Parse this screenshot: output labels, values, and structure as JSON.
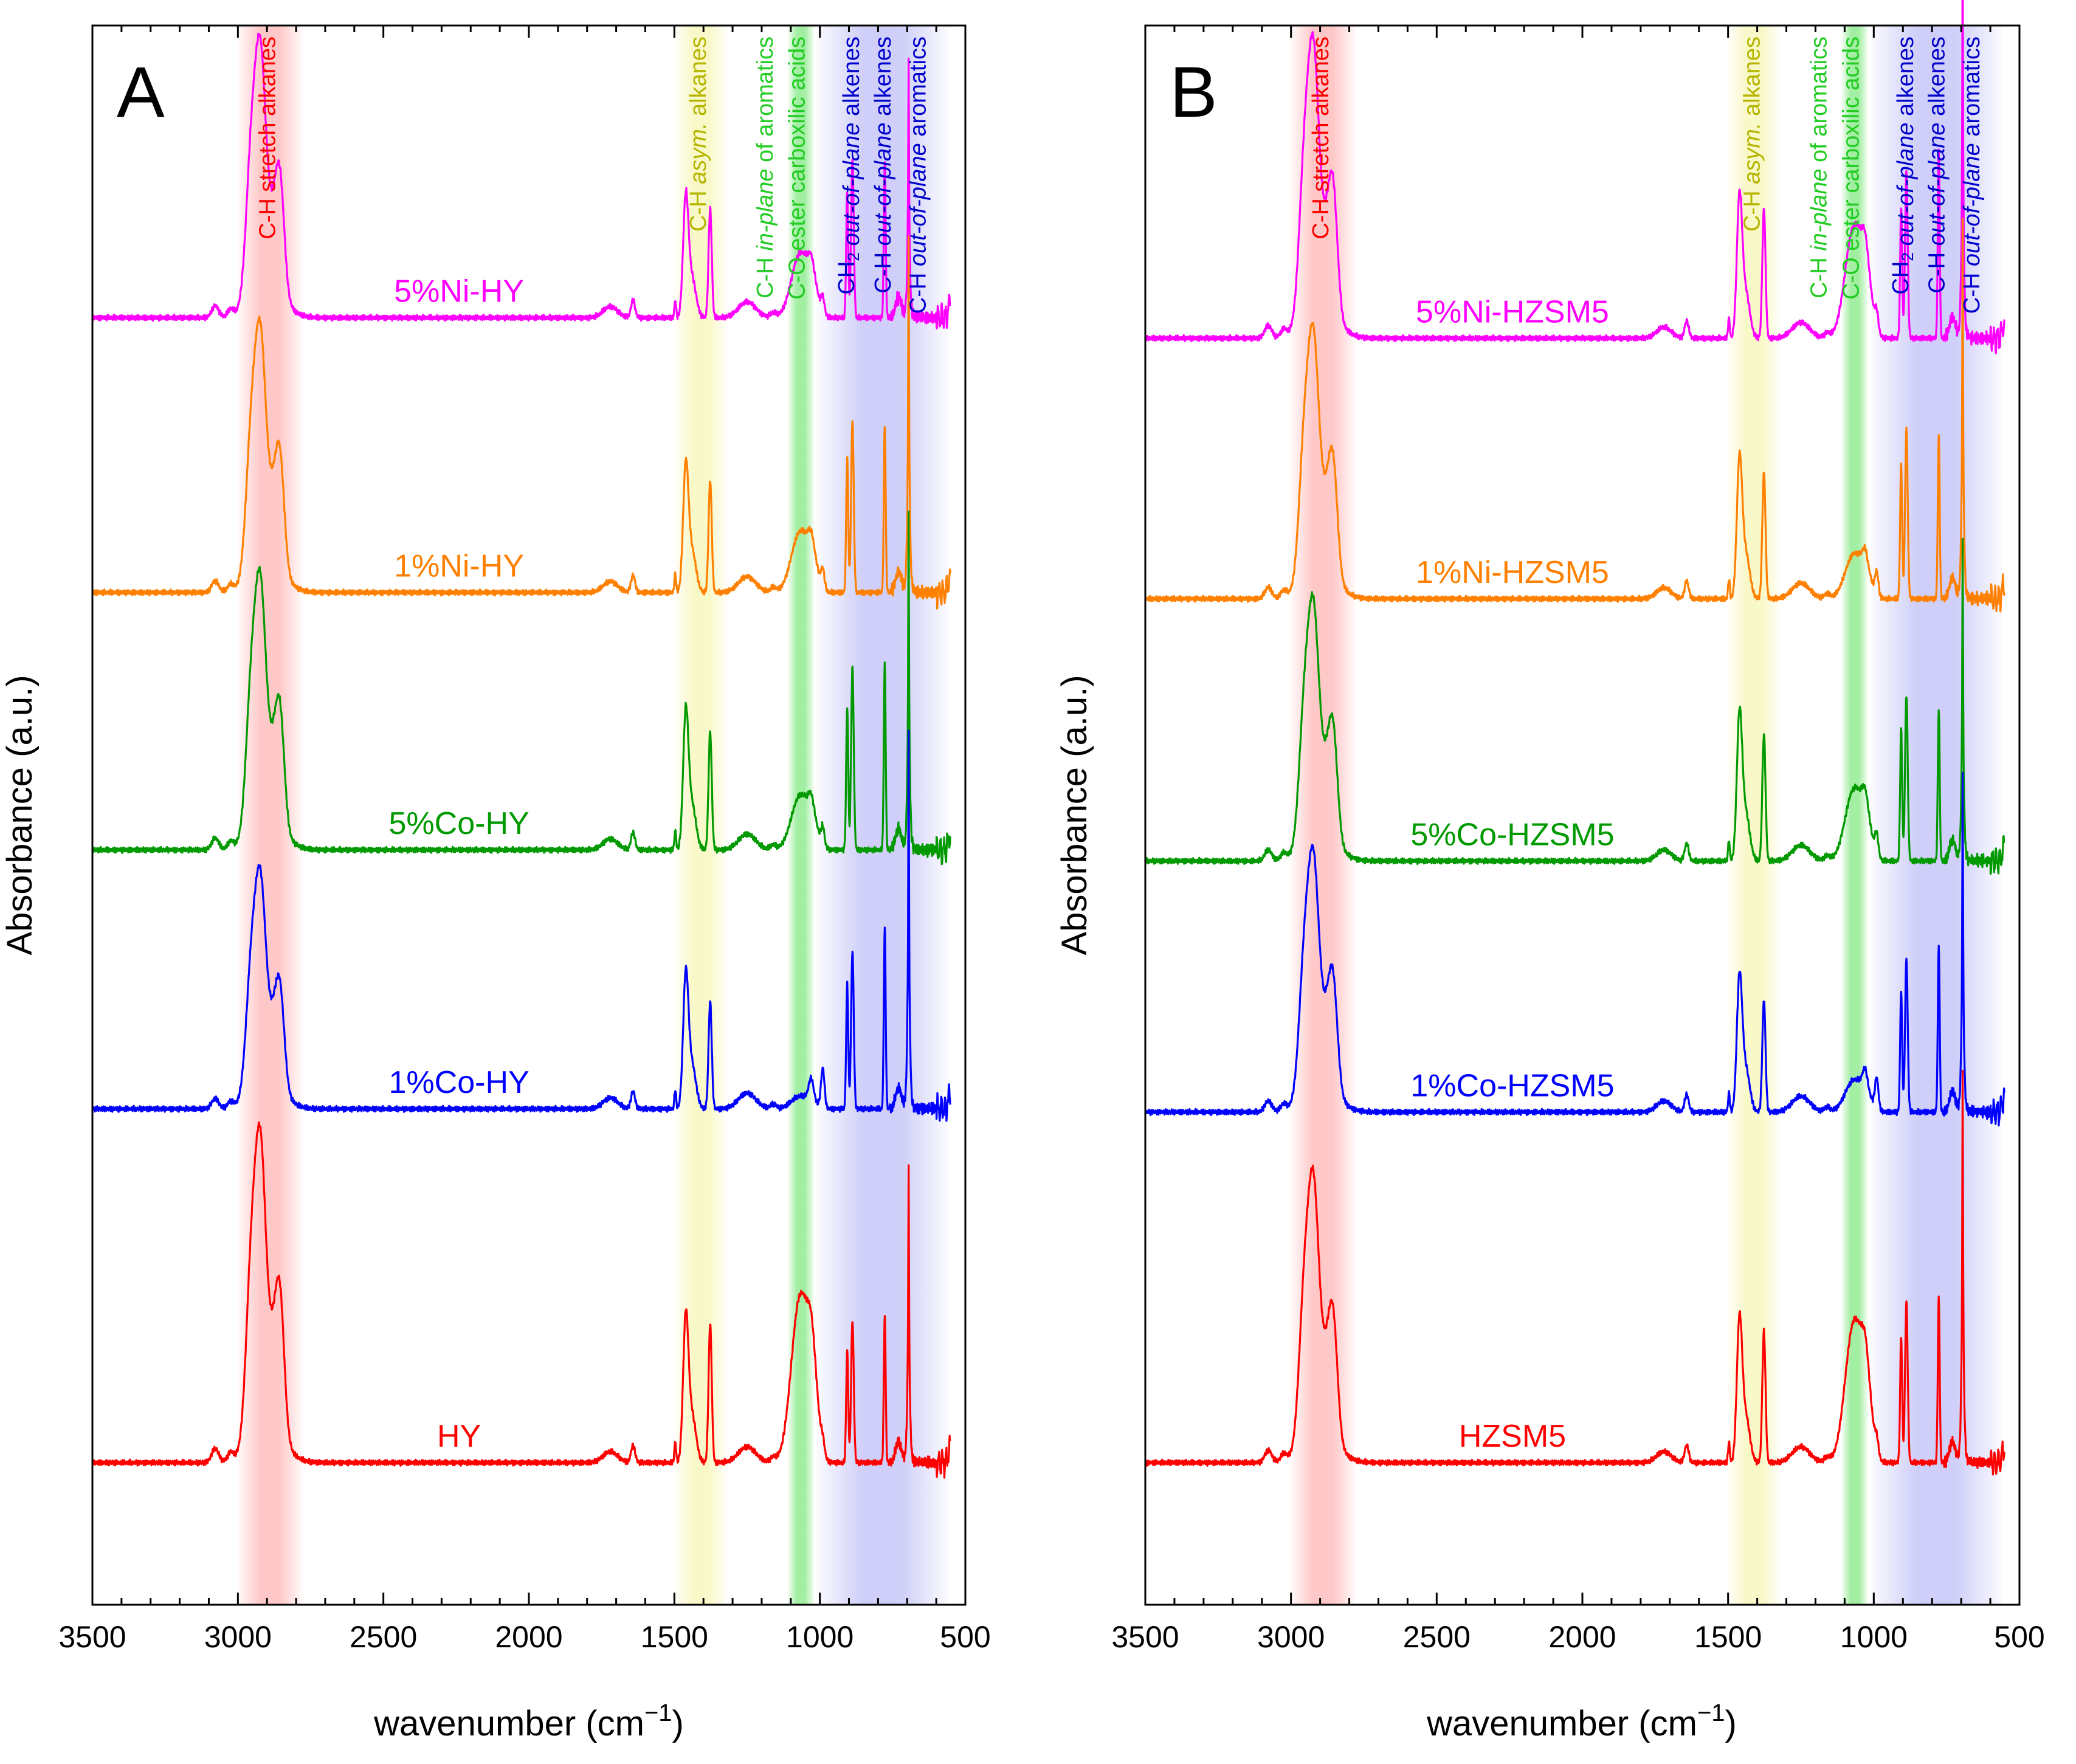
{
  "figure": {
    "x_axis_label": "wavenumber (cm",
    "x_axis_label_sup": "−1",
    "x_axis_label_close": ")",
    "y_axis_label": "Absorbance (a.u.)"
  },
  "colors": {
    "magenta": "#ff00ff",
    "orange": "#ff8000",
    "green": "#009900",
    "blue": "#0000ff",
    "red": "#ff0000",
    "band_red": "#ff9a9a",
    "band_yellow": "#f4f29a",
    "band_green": "#55e055",
    "band_blue": "#a8a8f4",
    "label_yellow": "#b5b500",
    "label_green": "#22cc22",
    "label_blue": "#0000cc"
  },
  "bands": [
    {
      "from": 3000,
      "to": 2780,
      "color_key": "band_red"
    },
    {
      "from": 1500,
      "to": 1320,
      "color_key": "band_yellow"
    },
    {
      "from": 1110,
      "to": 1020,
      "color_key": "band_green"
    },
    {
      "from": 1010,
      "to": 560,
      "color_key": "band_blue"
    }
  ],
  "annotations": [
    {
      "x": 2900,
      "segments": [
        {
          "t": "C-H stretch alkanes"
        }
      ],
      "color_key": "red"
    },
    {
      "x": 1420,
      "segments": [
        {
          "t": "C-H "
        },
        {
          "t": "asym.",
          "i": true
        },
        {
          "t": " alkanes"
        }
      ],
      "color_key": "label_yellow"
    },
    {
      "x": 1190,
      "segments": [
        {
          "t": "C-H "
        },
        {
          "t": "in-plane",
          "i": true
        },
        {
          "t": " of aromatics"
        }
      ],
      "color_key": "label_green"
    },
    {
      "x": 1080,
      "segments": [
        {
          "t": "C-O ester carboxilic acids"
        }
      ],
      "color_key": "label_green"
    },
    {
      "x": 910,
      "segments": [
        {
          "t": "CH"
        },
        {
          "t": "2",
          "sub": true
        },
        {
          "t": " "
        },
        {
          "t": "out-of-plane",
          "i": true
        },
        {
          "t": " alkenes"
        }
      ],
      "color_key": "label_blue"
    },
    {
      "x": 785,
      "segments": [
        {
          "t": "C-H "
        },
        {
          "t": "out-of-plane",
          "i": true
        },
        {
          "t": " alkenes"
        }
      ],
      "color_key": "label_blue"
    },
    {
      "x": 665,
      "segments": [
        {
          "t": "C-H "
        },
        {
          "t": "out-of-plane",
          "i": true
        },
        {
          "t": " aromatics"
        }
      ],
      "color_key": "label_blue"
    }
  ],
  "chart_data": [
    {
      "type": "line",
      "panel_label": "A",
      "xlabel": "wavenumber (cm−1)",
      "ylabel": "Absorbance (a.u.)",
      "xlim": [
        3500,
        500
      ],
      "x_reversed": true,
      "x_ticks": [
        3500,
        3000,
        2500,
        2000,
        1500,
        1000,
        500
      ],
      "y_ticks_shown": false,
      "grid": false,
      "legend": "inline labels above each trace",
      "series": [
        {
          "name": "5%Ni-HY",
          "color_key": "magenta",
          "baseline": 0.815,
          "ch": 0.149,
          "ys": 0.072,
          "yc": 0.069,
          "co": 0.04,
          "ch2": 0.106,
          "alk": 0.098,
          "aro": 0.129,
          "ip": 0.01
        },
        {
          "name": "1%Ni-HY",
          "color_key": "orange",
          "baseline": 0.641,
          "ch": 0.144,
          "ys": 0.076,
          "yc": 0.071,
          "co": 0.038,
          "ch2": 0.114,
          "alk": 0.106,
          "aro": 0.178,
          "ip": 0.012
        },
        {
          "name": "5%Co-HY",
          "color_key": "green",
          "baseline": 0.478,
          "ch": 0.148,
          "ys": 0.082,
          "yc": 0.075,
          "co": 0.034,
          "ch2": 0.121,
          "alk": 0.118,
          "aro": 0.167,
          "ip": 0.012
        },
        {
          "name": "1%Co-HY",
          "color_key": "blue",
          "baseline": 0.314,
          "ch": 0.128,
          "ys": 0.08,
          "yc": 0.068,
          "co": 0.008,
          "ch2": 0.105,
          "alk": 0.115,
          "aro": 0.185,
          "ip": 0.025
        },
        {
          "name": "HY",
          "color_key": "red",
          "baseline": 0.09,
          "ch": 0.178,
          "ys": 0.087,
          "yc": 0.088,
          "co": 0.104,
          "ch2": 0.095,
          "alk": 0.093,
          "aro": 0.148,
          "ip": 0.008
        }
      ]
    },
    {
      "type": "line",
      "panel_label": "B",
      "xlabel": "wavenumber (cm−1)",
      "ylabel": "Absorbance (a.u.)",
      "xlim": [
        3500,
        500
      ],
      "x_reversed": true,
      "x_ticks": [
        3500,
        3000,
        2500,
        2000,
        1500,
        1000,
        500
      ],
      "y_ticks_shown": false,
      "grid": false,
      "legend": "inline labels above each trace",
      "series": [
        {
          "name": "5%Ni-HZSM5",
          "color_key": "magenta",
          "baseline": 0.802,
          "ch": 0.16,
          "ys": 0.084,
          "yc": 0.082,
          "co": 0.07,
          "ch2": 0.111,
          "alk": 0.12,
          "aro": 0.193,
          "ip": 0.012
        },
        {
          "name": "1%Ni-HZSM5",
          "color_key": "orange",
          "baseline": 0.637,
          "ch": 0.145,
          "ys": 0.083,
          "yc": 0.08,
          "co": 0.028,
          "ch2": 0.113,
          "alk": 0.103,
          "aro": 0.185,
          "ip": 0.015
        },
        {
          "name": "5%Co-HZSM5",
          "color_key": "green",
          "baseline": 0.471,
          "ch": 0.14,
          "ys": 0.087,
          "yc": 0.08,
          "co": 0.045,
          "ch2": 0.111,
          "alk": 0.096,
          "aro": 0.16,
          "ip": 0.014
        },
        {
          "name": "1%Co-HZSM5",
          "color_key": "blue",
          "baseline": 0.312,
          "ch": 0.14,
          "ys": 0.08,
          "yc": 0.071,
          "co": 0.02,
          "ch2": 0.102,
          "alk": 0.105,
          "aro": 0.168,
          "ip": 0.02
        },
        {
          "name": "HZSM5",
          "color_key": "red",
          "baseline": 0.09,
          "ch": 0.155,
          "ys": 0.085,
          "yc": 0.083,
          "co": 0.088,
          "ch2": 0.107,
          "alk": 0.104,
          "aro": 0.194,
          "ip": 0.01
        }
      ]
    }
  ]
}
